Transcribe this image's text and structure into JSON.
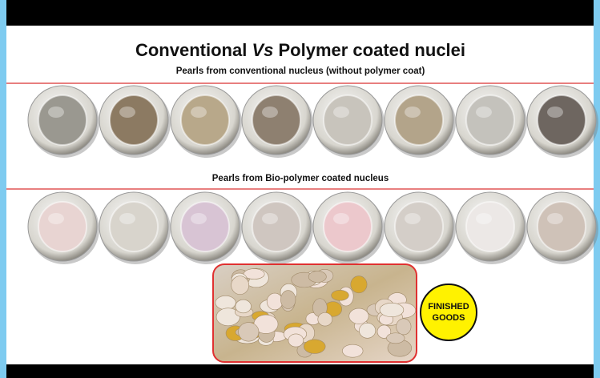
{
  "header": {
    "title_start": "Conventional",
    "title_italic": "Vs",
    "title_end": "Polymer coated nuclei"
  },
  "sections": [
    {
      "caption": "Pearls from conventional nucleus (without polymer coat)"
    },
    {
      "caption": "Pearls from Bio-polymer coated nucleus"
    }
  ],
  "badge": {
    "line1": "FINISHED",
    "line2": "GOODS"
  }
}
